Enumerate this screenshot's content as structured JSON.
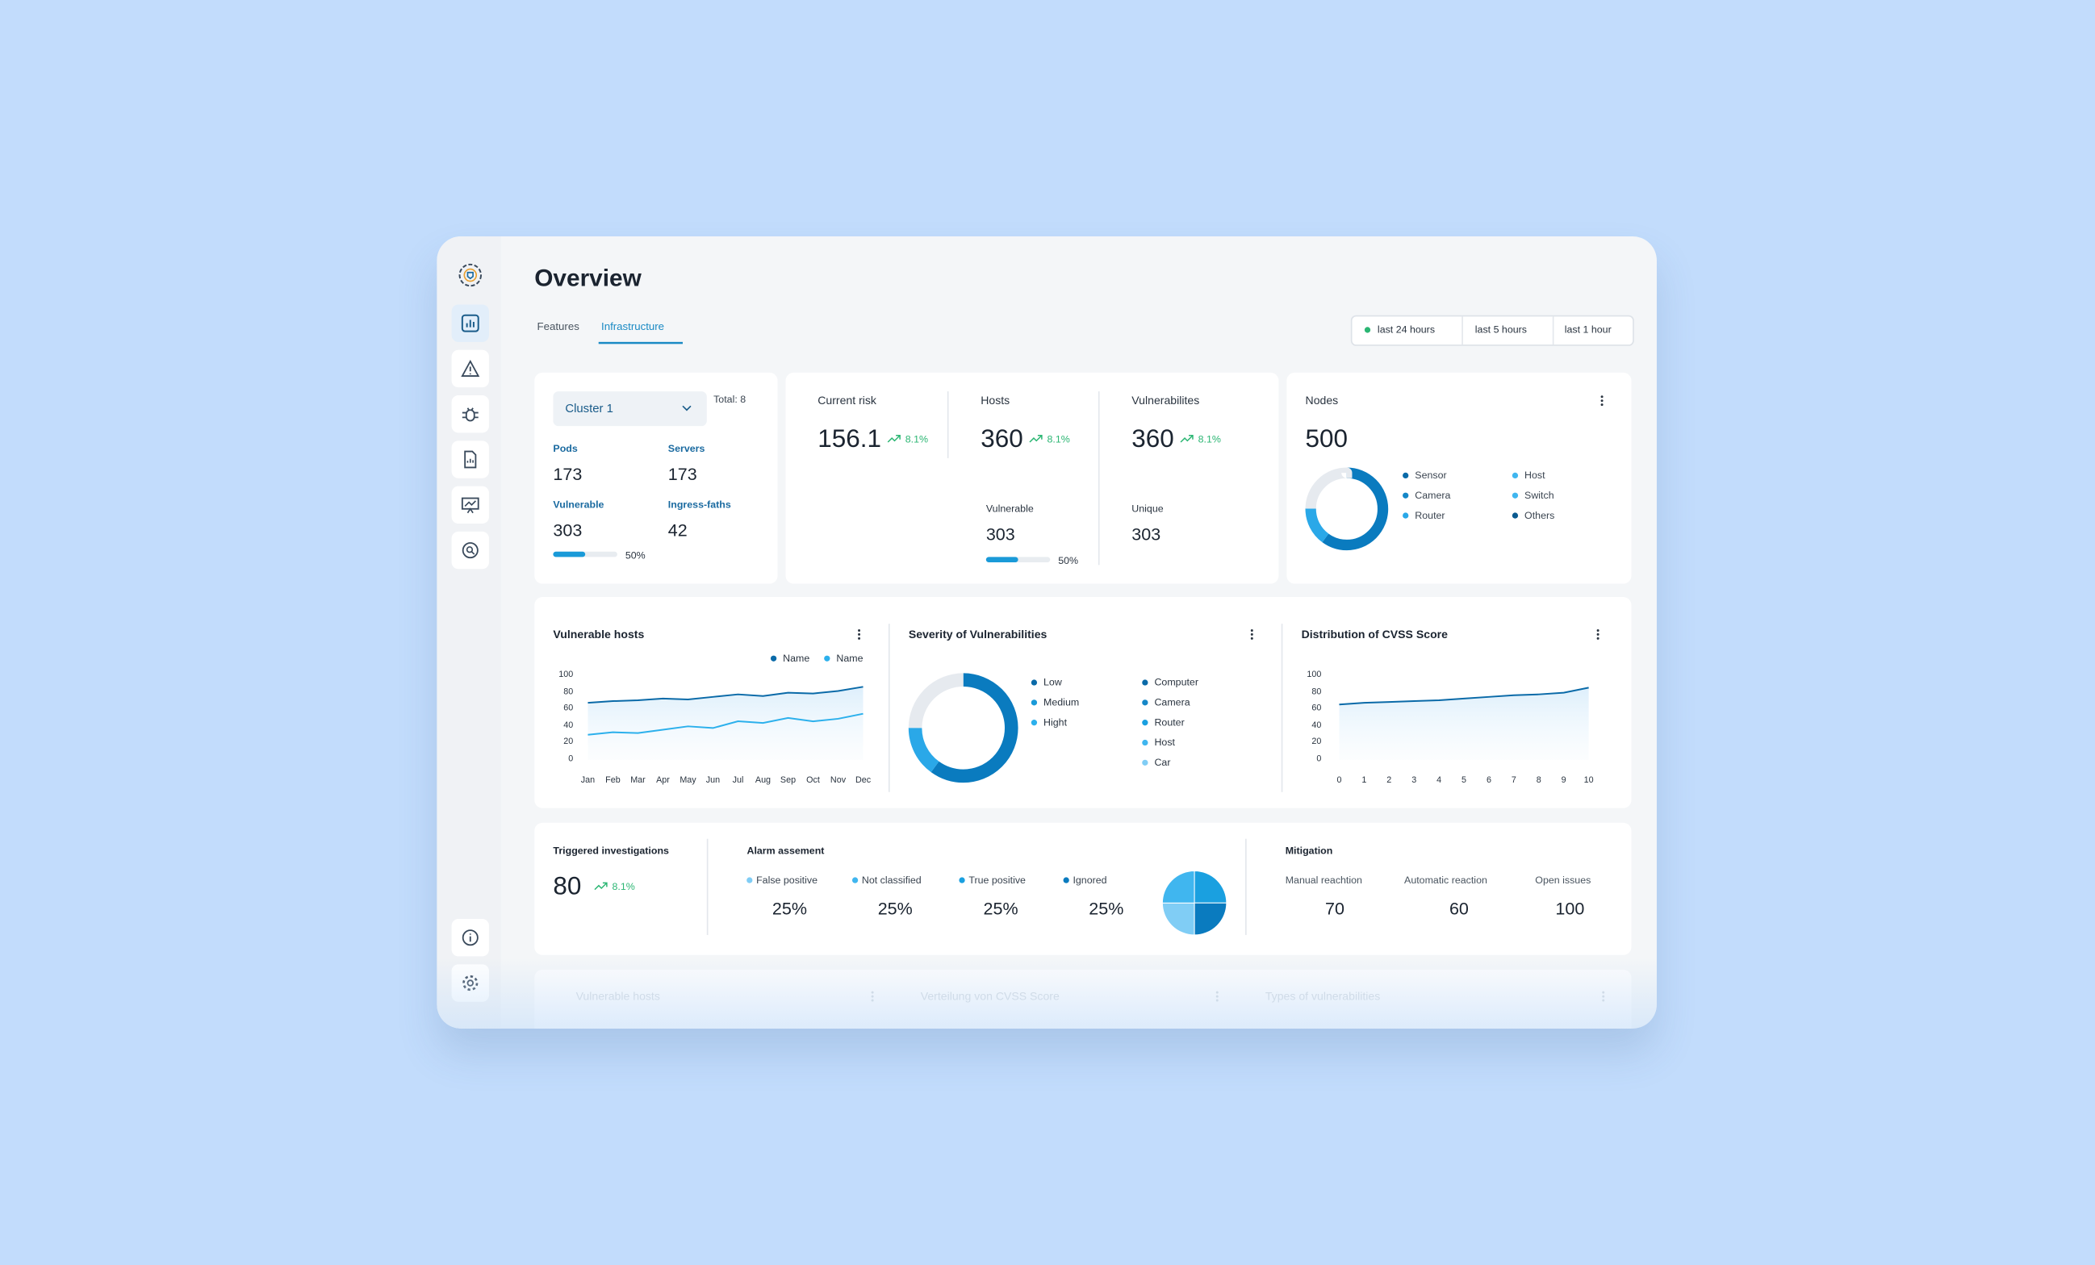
{
  "header": {
    "title": "Overview"
  },
  "tabs": [
    "Features",
    "Infrastructure"
  ],
  "active_tab": 1,
  "time_filters": [
    "last 24 hours",
    "last 5 hours",
    "last 1 hour"
  ],
  "cluster": {
    "selector": "Cluster 1",
    "total": "Total: 8",
    "stats": [
      {
        "label": "Pods",
        "value": 173
      },
      {
        "label": "Servers",
        "value": 173
      },
      {
        "label": "Vulnerable",
        "value": 303
      },
      {
        "label": "Ingress-faths",
        "value": 42
      }
    ],
    "progress": 50,
    "progress_label": "50%"
  },
  "kpis": [
    {
      "label": "Current risk",
      "value": 156.1,
      "change": "8.1%"
    },
    {
      "label": "Hosts",
      "value": 360,
      "change": "8.1%",
      "sub_label": "Vulnerable",
      "sub_value": 303,
      "progress": 50,
      "progress_label": "50%"
    },
    {
      "label": "Vulnerabilites",
      "value": 360,
      "change": "8.1%",
      "sub_label": "Unique",
      "sub_value": 303
    }
  ],
  "nodes": {
    "title": "Nodes",
    "value": 500,
    "segments": [
      {
        "value": 60,
        "color": "#0a7bbf"
      },
      {
        "value": 15,
        "color": "#2aa8e8"
      },
      {
        "value": 25,
        "color": "#e6eaef"
      }
    ],
    "legend": [
      {
        "name": "Sensor",
        "color": "#0a6aa8"
      },
      {
        "name": "Host",
        "color": "#40b6ef"
      },
      {
        "name": "Camera",
        "color": "#1587c7"
      },
      {
        "name": "Switch",
        "color": "#40b6ef"
      },
      {
        "name": "Router",
        "color": "#2aa8e8"
      },
      {
        "name": "Others",
        "color": "#0a5a90"
      }
    ]
  },
  "vulnerable_hosts": {
    "type": "line",
    "title": "Vulnerable hosts",
    "categories": [
      "Jan",
      "Feb",
      "Mar",
      "Apr",
      "May",
      "Jun",
      "Jul",
      "Aug",
      "Sep",
      "Oct",
      "Nov",
      "Dec"
    ],
    "ylim": [
      0,
      100
    ],
    "yticks": [
      0,
      20,
      40,
      60,
      80,
      100
    ],
    "series": [
      {
        "name": "Name",
        "color": "#0a6aa8",
        "values": [
          68,
          70,
          71,
          73,
          72,
          75,
          78,
          76,
          80,
          79,
          82,
          87
        ]
      },
      {
        "name": "Name",
        "color": "#2cb0ec",
        "values": [
          30,
          33,
          32,
          36,
          40,
          38,
          46,
          44,
          50,
          46,
          49,
          55
        ]
      }
    ]
  },
  "severity": {
    "title": "Severity of Vulnerabilities",
    "segments": [
      {
        "value": 60,
        "color": "#0a7bbf"
      },
      {
        "value": 15,
        "color": "#2aa8e8"
      },
      {
        "value": 25,
        "color": "#e6eaef"
      }
    ],
    "legend": [
      {
        "name": "Low",
        "color": "#0a6aa8"
      },
      {
        "name": "Medium",
        "color": "#1a9ad8"
      },
      {
        "name": "Hight",
        "color": "#2cb0ec"
      }
    ],
    "legend2": [
      {
        "name": "Computer",
        "color": "#0a6aa8"
      },
      {
        "name": "Camera",
        "color": "#1587c7"
      },
      {
        "name": "Router",
        "color": "#1aa0e0"
      },
      {
        "name": "Host",
        "color": "#40b6ef"
      },
      {
        "name": "Car",
        "color": "#80cdf5"
      }
    ]
  },
  "cvss": {
    "type": "line",
    "title": "Distribution of CVSS Score",
    "x": [
      0,
      1,
      2,
      3,
      4,
      5,
      6,
      7,
      8,
      9,
      10
    ],
    "xlim": [
      -0.5,
      10.8
    ],
    "xticks": [
      0,
      1,
      2,
      3,
      4,
      5,
      6,
      7,
      8,
      9,
      10
    ],
    "ylim": [
      0,
      100
    ],
    "yticks": [
      0,
      20,
      40,
      60,
      80,
      100
    ],
    "series": [
      {
        "color": "#0a6aa8",
        "values": [
          66,
          68,
          69,
          70,
          71,
          73,
          75,
          77,
          78,
          80,
          86
        ]
      }
    ]
  },
  "investigations": {
    "title": "Triggered investigations",
    "value": 80,
    "change": "8.1%"
  },
  "alarm": {
    "title": "Alarm assement",
    "items": [
      {
        "name": "False positive",
        "value": 25,
        "value_label": "25%",
        "color": "#80cdf5"
      },
      {
        "name": "Not classified",
        "value": 25,
        "value_label": "25%",
        "color": "#40b6ef"
      },
      {
        "name": "True positive",
        "value": 25,
        "value_label": "25%",
        "color": "#1aa0e0"
      },
      {
        "name": "Ignored",
        "value": 25,
        "value_label": "25%",
        "color": "#0a7bbf"
      }
    ]
  },
  "mitigation": {
    "title": "Mitigation",
    "items": [
      {
        "label": "Manual reachtion",
        "value": 70
      },
      {
        "label": "Automatic reaction",
        "value": 60
      },
      {
        "label": "Open issues",
        "value": 100
      }
    ]
  },
  "faded_row": [
    "Vulnerable hosts",
    "Verteilung von CVSS Score",
    "Types of vulnerabilities"
  ]
}
